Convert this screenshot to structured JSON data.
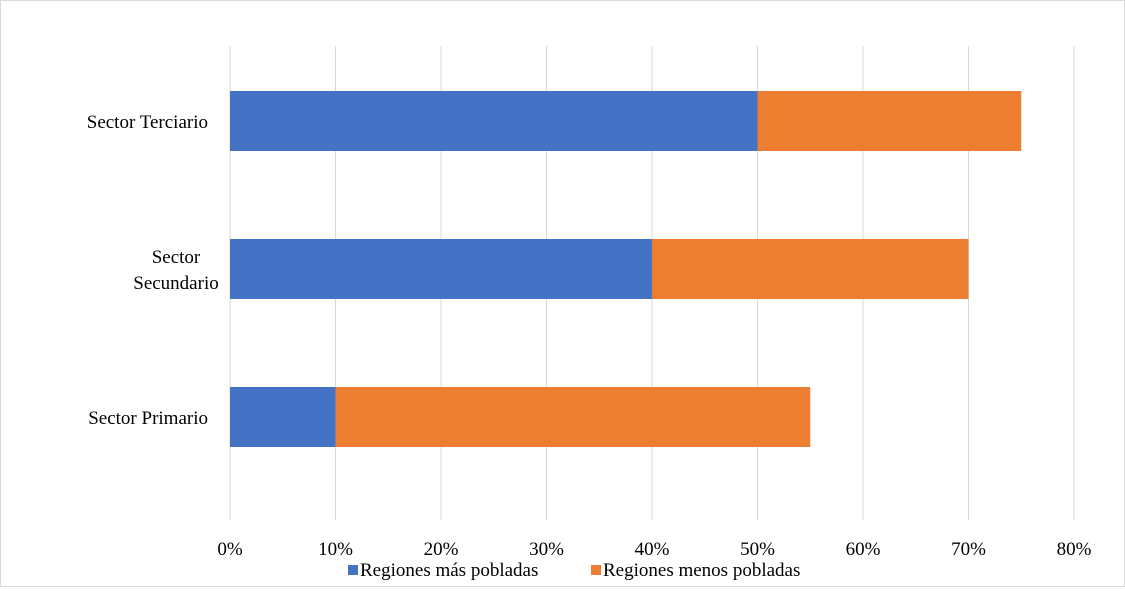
{
  "chart_data": {
    "type": "bar",
    "orientation": "horizontal",
    "stacked": true,
    "categories": [
      "Sector Terciario",
      "Sector Secundario",
      "Sector Primario"
    ],
    "category_label_lines": [
      [
        "Sector Terciario"
      ],
      [
        "Sector",
        "Secundario"
      ],
      [
        "Sector Primario"
      ]
    ],
    "series": [
      {
        "name": "Regiones más pobladas",
        "color": "#4472C4",
        "values": [
          50,
          40,
          10
        ]
      },
      {
        "name": "Regiones menos pobladas",
        "color": "#ED7D31",
        "values": [
          25,
          30,
          45
        ]
      }
    ],
    "xlim": [
      0,
      80
    ],
    "xticks": [
      0,
      10,
      20,
      30,
      40,
      50,
      60,
      70,
      80
    ],
    "xtick_labels": [
      "0%",
      "10%",
      "20%",
      "30%",
      "40%",
      "50%",
      "60%",
      "70%",
      "80%"
    ],
    "title": "",
    "xlabel": "",
    "ylabel": "",
    "grid": "vertical",
    "legend_position": "bottom"
  }
}
